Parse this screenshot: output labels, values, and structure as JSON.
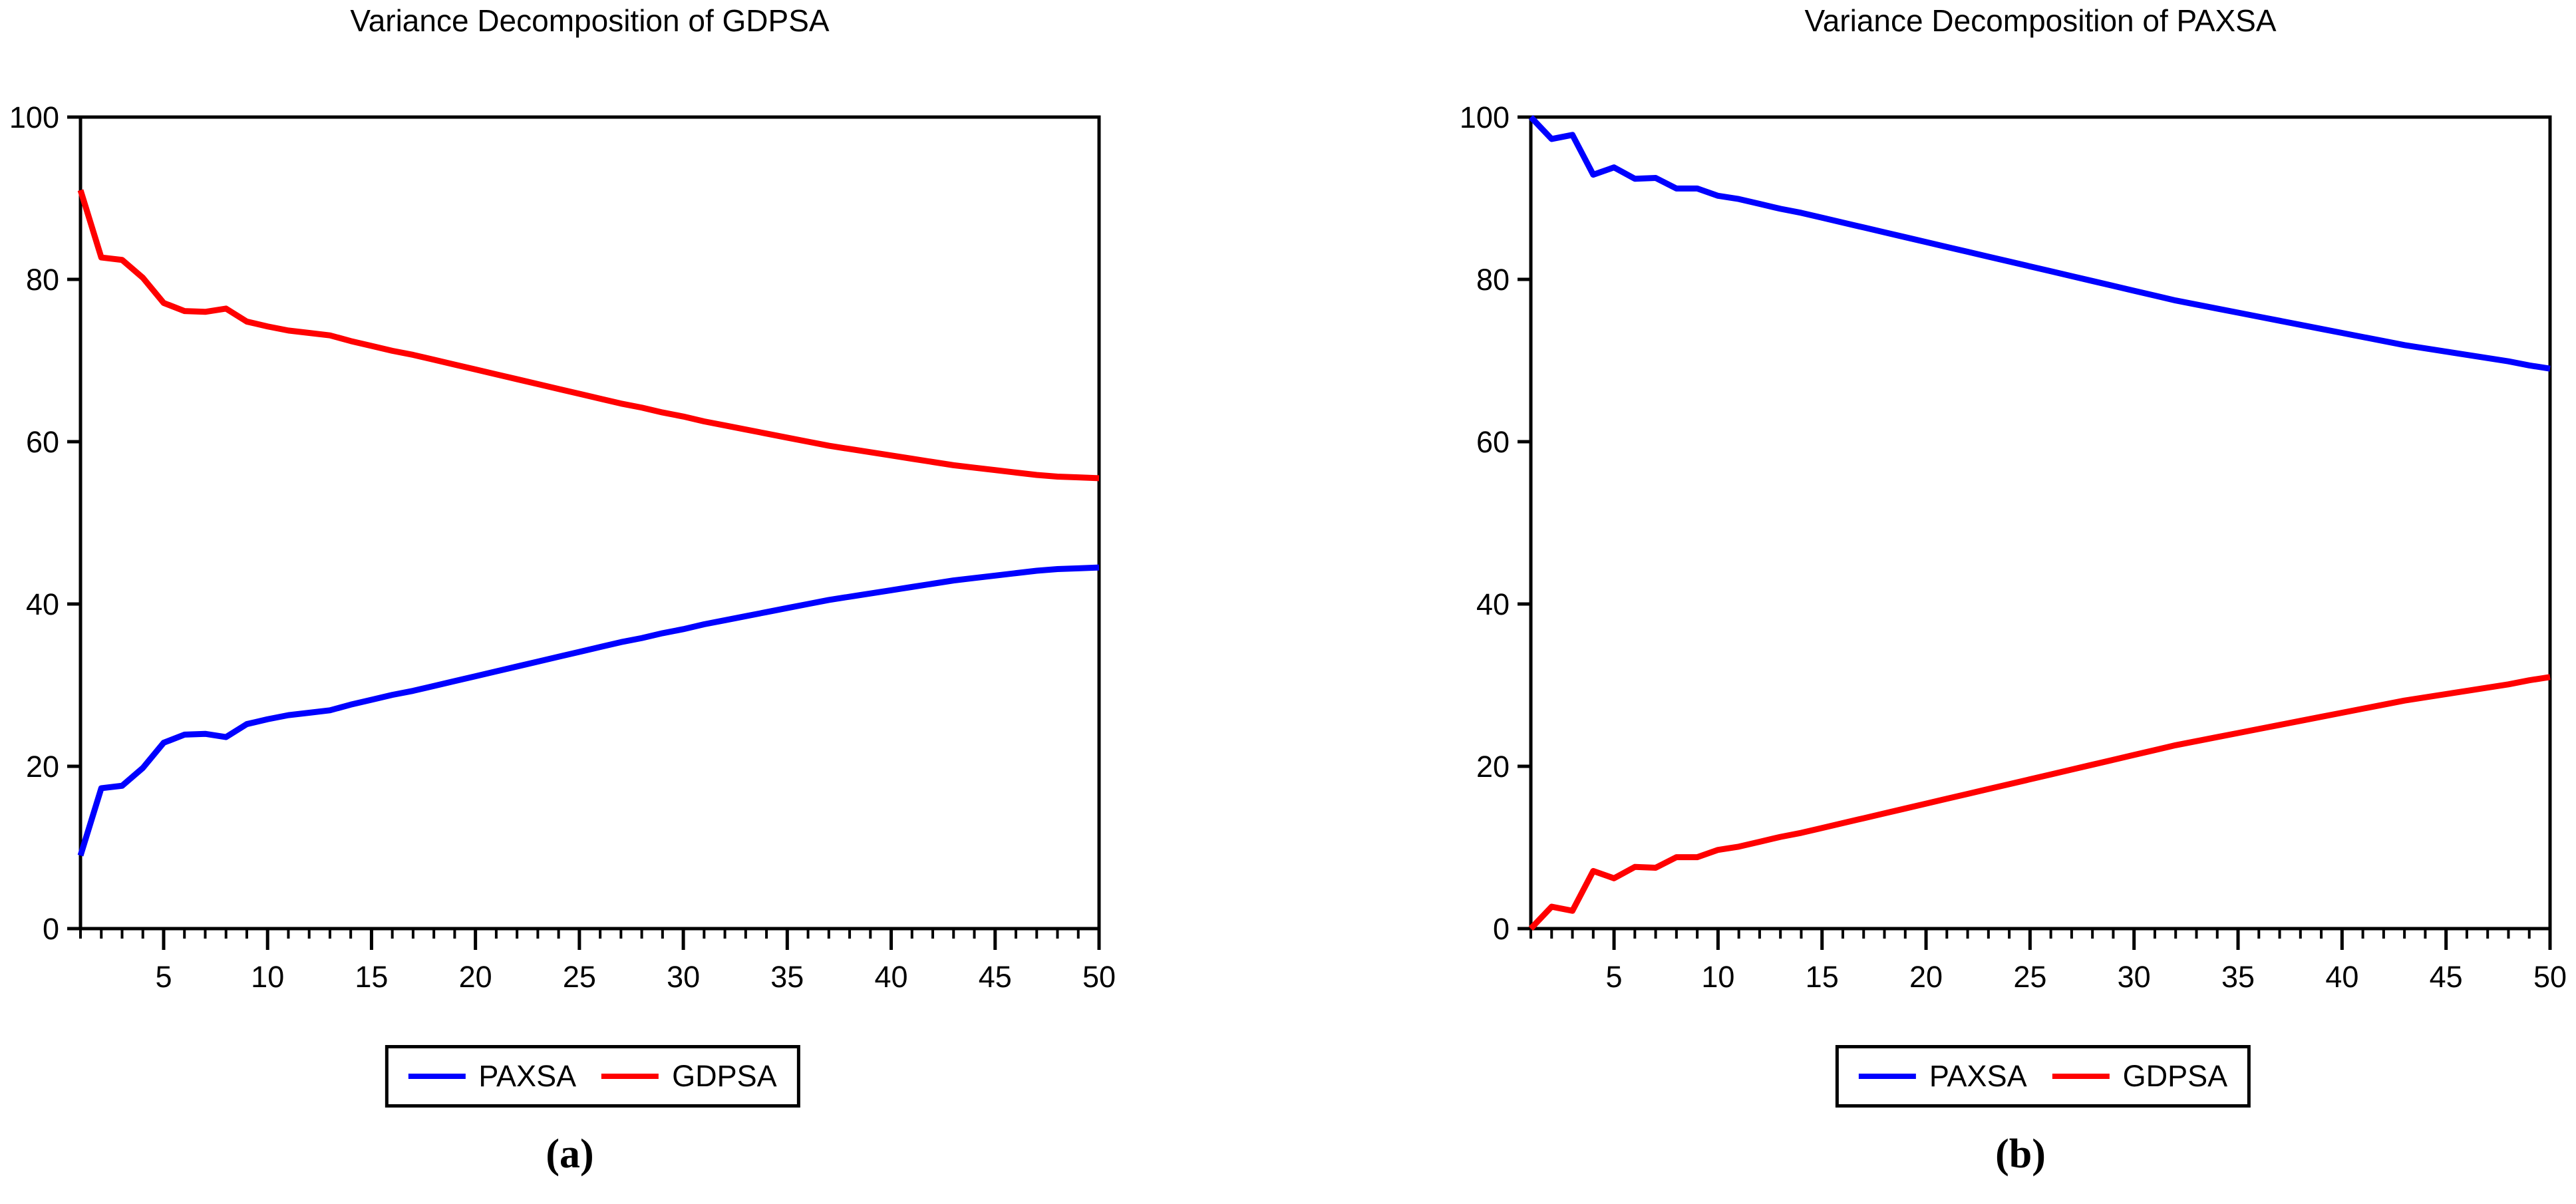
{
  "chart_data": [
    {
      "type": "line",
      "title": "Variance Decomposition of GDPSA",
      "caption": "(a)",
      "x_range": [
        1,
        50
      ],
      "y_range": [
        0,
        100
      ],
      "x_ticks": [
        5,
        10,
        15,
        20,
        25,
        30,
        35,
        40,
        45,
        50
      ],
      "x_minor_tick_step": 1,
      "y_ticks": [
        0,
        20,
        40,
        60,
        80,
        100
      ],
      "grid": false,
      "legend_position": "bottom",
      "series": [
        {
          "name": "PAXSA",
          "color": "#0000ff",
          "values": [
            9.0,
            17.3,
            17.6,
            19.8,
            22.9,
            23.9,
            24.0,
            23.6,
            25.2,
            25.8,
            26.3,
            26.6,
            26.9,
            27.6,
            28.2,
            28.8,
            29.3,
            29.9,
            30.5,
            31.1,
            31.7,
            32.3,
            32.9,
            33.5,
            34.1,
            34.7,
            35.3,
            35.8,
            36.4,
            36.9,
            37.5,
            38.0,
            38.5,
            39.0,
            39.5,
            40.0,
            40.5,
            40.9,
            41.3,
            41.7,
            42.1,
            42.5,
            42.9,
            43.2,
            43.5,
            43.8,
            44.1,
            44.3,
            44.4,
            44.5
          ]
        },
        {
          "name": "GDPSA",
          "color": "#ff0000",
          "values": [
            91.0,
            82.7,
            82.4,
            80.2,
            77.1,
            76.1,
            76.0,
            76.4,
            74.8,
            74.2,
            73.7,
            73.4,
            73.1,
            72.4,
            71.8,
            71.2,
            70.7,
            70.1,
            69.5,
            68.9,
            68.3,
            67.7,
            67.1,
            66.5,
            65.9,
            65.3,
            64.7,
            64.2,
            63.6,
            63.1,
            62.5,
            62.0,
            61.5,
            61.0,
            60.5,
            60.0,
            59.5,
            59.1,
            58.7,
            58.3,
            57.9,
            57.5,
            57.1,
            56.8,
            56.5,
            56.2,
            55.9,
            55.7,
            55.6,
            55.5
          ]
        }
      ]
    },
    {
      "type": "line",
      "title": "Variance Decomposition of PAXSA",
      "caption": "(b)",
      "x_range": [
        1,
        50
      ],
      "y_range": [
        0,
        100
      ],
      "x_ticks": [
        5,
        10,
        15,
        20,
        25,
        30,
        35,
        40,
        45,
        50
      ],
      "x_minor_tick_step": 1,
      "y_ticks": [
        0,
        20,
        40,
        60,
        80,
        100
      ],
      "grid": false,
      "legend_position": "bottom",
      "series": [
        {
          "name": "PAXSA",
          "color": "#0000ff",
          "values": [
            100,
            97.3,
            97.8,
            92.9,
            93.8,
            92.4,
            92.5,
            91.2,
            91.2,
            90.3,
            89.9,
            89.3,
            88.7,
            88.2,
            87.6,
            87.0,
            86.4,
            85.8,
            85.2,
            84.6,
            84.0,
            83.4,
            82.8,
            82.2,
            81.6,
            81.0,
            80.4,
            79.8,
            79.2,
            78.6,
            78.0,
            77.4,
            76.9,
            76.4,
            75.9,
            75.4,
            74.9,
            74.4,
            73.9,
            73.4,
            72.9,
            72.4,
            71.9,
            71.5,
            71.1,
            70.7,
            70.3,
            69.9,
            69.4,
            69.0
          ]
        },
        {
          "name": "GDPSA",
          "color": "#ff0000",
          "values": [
            0,
            2.7,
            2.2,
            7.1,
            6.2,
            7.6,
            7.5,
            8.8,
            8.8,
            9.7,
            10.1,
            10.7,
            11.3,
            11.8,
            12.4,
            13.0,
            13.6,
            14.2,
            14.8,
            15.4,
            16.0,
            16.6,
            17.2,
            17.8,
            18.4,
            19.0,
            19.6,
            20.2,
            20.8,
            21.4,
            22.0,
            22.6,
            23.1,
            23.6,
            24.1,
            24.6,
            25.1,
            25.6,
            26.1,
            26.6,
            27.1,
            27.6,
            28.1,
            28.5,
            28.9,
            29.3,
            29.7,
            30.1,
            30.6,
            31.0
          ]
        }
      ]
    }
  ]
}
